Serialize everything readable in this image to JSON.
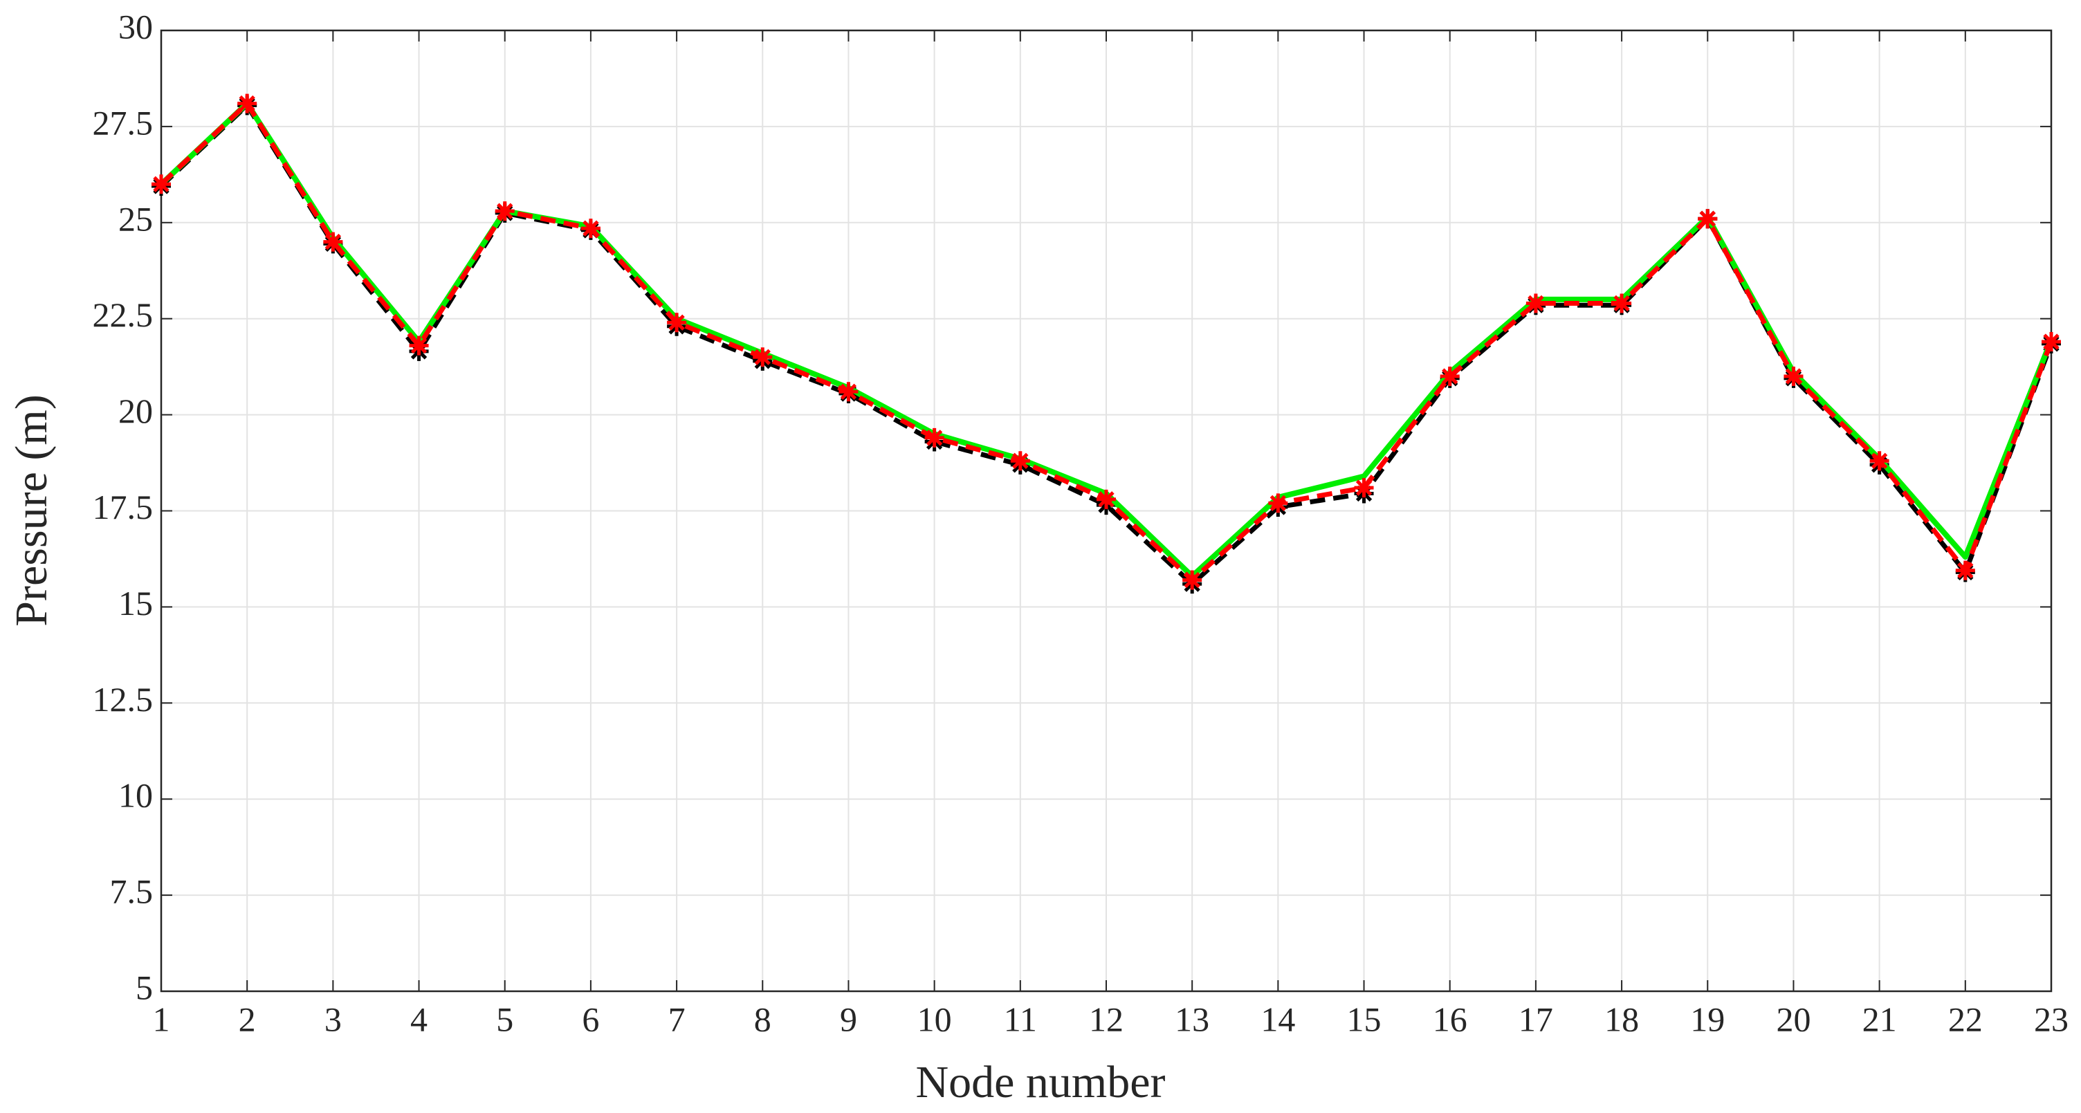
{
  "chart_data": {
    "type": "line",
    "x_label": "Node number",
    "y_label": "Pressure (m)",
    "x": [
      1,
      2,
      3,
      4,
      5,
      6,
      7,
      8,
      9,
      10,
      11,
      12,
      13,
      14,
      15,
      16,
      17,
      18,
      19,
      20,
      21,
      22,
      23
    ],
    "xlim": [
      1,
      23
    ],
    "xticks": [
      1,
      2,
      3,
      4,
      5,
      6,
      7,
      8,
      9,
      10,
      11,
      12,
      13,
      14,
      15,
      16,
      17,
      18,
      19,
      20,
      21,
      22,
      23
    ],
    "ylim": [
      5,
      30
    ],
    "yticks": [
      5,
      7.5,
      10,
      12.5,
      15,
      17.5,
      20,
      22.5,
      25,
      27.5,
      30
    ],
    "grid": true,
    "series": [
      {
        "color": "#000000",
        "linestyle": "dashed",
        "marker": "asterisk",
        "values": [
          25.95,
          28.05,
          24.45,
          21.65,
          25.25,
          24.8,
          22.3,
          21.4,
          20.55,
          19.3,
          18.7,
          17.65,
          15.6,
          17.6,
          17.95,
          20.95,
          22.85,
          22.85,
          25.1,
          20.95,
          18.7,
          15.9,
          21.85
        ]
      },
      {
        "color": "#00ee00",
        "linestyle": "solid",
        "marker": "none",
        "values": [
          26,
          28.1,
          24.6,
          21.9,
          25.3,
          24.9,
          22.5,
          21.6,
          20.7,
          19.5,
          18.85,
          17.95,
          15.8,
          17.85,
          18.4,
          21.1,
          23.0,
          23.0,
          25.15,
          21.1,
          18.85,
          16.3,
          21.95
        ]
      },
      {
        "color": "#ff0000",
        "linestyle": "dashed",
        "marker": "asterisk",
        "values": [
          26,
          28.1,
          24.5,
          21.8,
          25.3,
          24.85,
          22.4,
          21.5,
          20.6,
          19.4,
          18.8,
          17.8,
          15.7,
          17.7,
          18.1,
          21.0,
          22.9,
          22.9,
          25.1,
          21.0,
          18.8,
          15.95,
          21.9
        ]
      }
    ]
  }
}
